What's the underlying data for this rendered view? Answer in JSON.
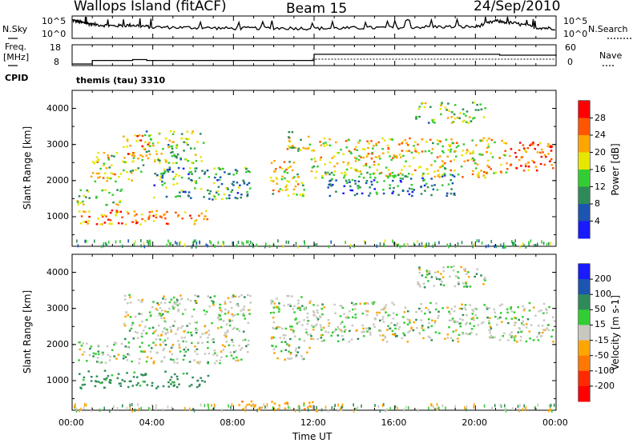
{
  "header": {
    "station": "Wallops Island (fitACF)",
    "beam": "Beam 15",
    "date": "24/Sep/2010"
  },
  "param_labels": {
    "nsky": "N.Sky",
    "nsearch": "N.Search",
    "freq": "Freq.",
    "freq_unit": "[MHz]",
    "nave": "Nave",
    "cpid": "CPID",
    "cpid_value": "themis (tau) 3310"
  },
  "noise_ticks_left": [
    "10^5",
    "10^0"
  ],
  "noise_ticks_right": [
    "10^5",
    "10^0"
  ],
  "freq_ticks_left": [
    "18",
    "8"
  ],
  "nave_ticks_right": [
    "60",
    "0"
  ],
  "range_axis": {
    "label": "Slant Range [km]",
    "ticks": [
      1000,
      2000,
      3000,
      4000
    ],
    "ylim": [
      180,
      4500
    ]
  },
  "time_axis": {
    "label": "Time UT",
    "ticks": [
      "00:00",
      "04:00",
      "08:00",
      "12:00",
      "16:00",
      "20:00",
      "00:00"
    ]
  },
  "power_colorbar": {
    "label": "Power [dB]",
    "ticks": [
      "4",
      "8",
      "12",
      "16",
      "20",
      "24",
      "28"
    ],
    "colors": [
      "#1a1aff",
      "#1a55b0",
      "#2e8b57",
      "#32cd32",
      "#e6e600",
      "#ffa500",
      "#ff5500",
      "#ff0000"
    ]
  },
  "velocity_colorbar": {
    "label": "Velocity [m s-1]",
    "ticks": [
      "200",
      "100",
      "50",
      "15",
      "-15",
      "-50",
      "-100",
      "-200"
    ],
    "colors": [
      "#1a1aff",
      "#1a55b0",
      "#2e8b57",
      "#32cd32",
      "#c8c8c0",
      "#ffa500",
      "#ff7800",
      "#ff2a00",
      "#ff0000"
    ]
  },
  "chart_data": [
    {
      "type": "line",
      "panel": "noise",
      "xlabel": "",
      "ylabel": "N.Sky",
      "x_hours": [
        0,
        0.5,
        1,
        2,
        3,
        4,
        6,
        8,
        10,
        12,
        14,
        16,
        18,
        20,
        21,
        22,
        23,
        24
      ],
      "series": [
        {
          "values": [
            4.2,
            3.6,
            3.2,
            2.8,
            3.0,
            2.5,
            2.4,
            2.2,
            2.3,
            2.2,
            2.3,
            2.4,
            2.6,
            2.6,
            4.0,
            3.4,
            2.4,
            2.2
          ]
        }
      ]
    },
    {
      "type": "line",
      "panel": "frequency",
      "ylabel": "Freq. [MHz]",
      "ylim": [
        8,
        18
      ],
      "x_hours": [
        0,
        1,
        3,
        3.7,
        11,
        12,
        20.9,
        21.2,
        24
      ],
      "values": [
        8,
        10,
        10.5,
        10,
        10,
        13.5,
        13.5,
        13.0,
        13.5
      ]
    },
    {
      "type": "heatmap",
      "panel": "power",
      "xlabel": "Time UT",
      "ylabel": "Slant Range [km]",
      "ylim": [
        180,
        4500
      ],
      "xlim_hours": [
        0,
        24
      ],
      "zlim_db": [
        0,
        30
      ],
      "regions": [
        {
          "t0": 0.3,
          "t1": 6.8,
          "r0": 800,
          "r1": 1200,
          "v": 22
        },
        {
          "t0": 0.2,
          "t1": 2.5,
          "r0": 1350,
          "r1": 1800,
          "v": 14
        },
        {
          "t0": 0.8,
          "t1": 3.5,
          "r0": 2000,
          "r1": 2800,
          "v": 17
        },
        {
          "t0": 2.5,
          "t1": 3.8,
          "r0": 2700,
          "r1": 3300,
          "v": 22
        },
        {
          "t0": 3.5,
          "t1": 6.5,
          "r0": 2500,
          "r1": 3400,
          "v": 14
        },
        {
          "t0": 4.0,
          "t1": 8.8,
          "r0": 1500,
          "r1": 2400,
          "v": 10
        },
        {
          "t0": 9.8,
          "t1": 11.5,
          "r0": 1600,
          "r1": 2600,
          "v": 18
        },
        {
          "t0": 10.5,
          "t1": 11.8,
          "r0": 2800,
          "r1": 3400,
          "v": 16
        },
        {
          "t0": 11.8,
          "t1": 21.5,
          "r0": 2100,
          "r1": 3200,
          "v": 18
        },
        {
          "t0": 12.5,
          "t1": 19.0,
          "r0": 1600,
          "r1": 2200,
          "v": 8
        },
        {
          "t0": 17.0,
          "t1": 20.5,
          "r0": 3600,
          "r1": 4200,
          "v": 14
        },
        {
          "t0": 21.5,
          "t1": 23.9,
          "r0": 2300,
          "r1": 3100,
          "v": 25
        }
      ]
    },
    {
      "type": "heatmap",
      "panel": "velocity",
      "xlabel": "Time UT",
      "ylabel": "Slant Range [km]",
      "ylim": [
        180,
        4500
      ],
      "xlim_hours": [
        0,
        24
      ],
      "zlim_ms": [
        -200,
        200
      ],
      "regions": [
        {
          "t0": 0.3,
          "t1": 6.8,
          "r0": 800,
          "r1": 1300,
          "v": 30
        },
        {
          "t0": 0.2,
          "t1": 2.5,
          "r0": 1500,
          "r1": 2100,
          "v": 0
        },
        {
          "t0": 2.5,
          "t1": 8.8,
          "r0": 1500,
          "r1": 3400,
          "v": 0
        },
        {
          "t0": 9.8,
          "t1": 11.8,
          "r0": 1600,
          "r1": 3400,
          "v": 0
        },
        {
          "t0": 11.8,
          "t1": 23.9,
          "r0": 2100,
          "r1": 3200,
          "v": 0
        },
        {
          "t0": 17.0,
          "t1": 20.5,
          "r0": 3600,
          "r1": 4200,
          "v": 0
        },
        {
          "t0": 8.0,
          "t1": 12.0,
          "r0": 200,
          "r1": 450,
          "v": -40
        }
      ]
    }
  ]
}
